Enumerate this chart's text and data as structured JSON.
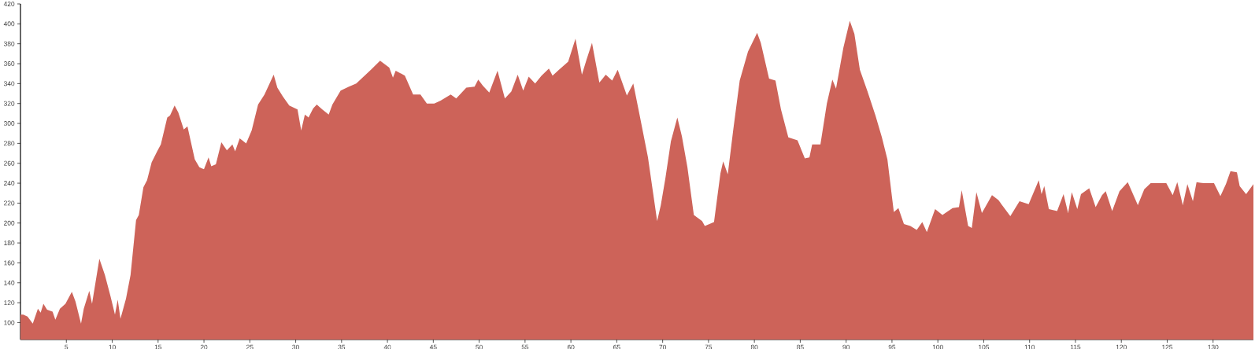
{
  "chart_data": {
    "type": "area",
    "color": "#cd6359",
    "x": [
      0,
      0.3,
      0.77,
      1.34,
      1.9,
      2.2,
      2.5,
      2.9,
      3.5,
      3.8,
      4.3,
      4.9,
      5.6,
      6.0,
      6.6,
      6.9,
      7.5,
      7.8,
      8.6,
      9.2,
      9.8,
      10.3,
      10.6,
      10.9,
      11.5,
      12.0,
      12.6,
      12.9,
      13.4,
      13.8,
      14.3,
      14.9,
      15.3,
      16.0,
      16.3,
      16.8,
      17.2,
      17.8,
      18.2,
      19.0,
      19.5,
      20.0,
      20.5,
      20.8,
      21.3,
      21.9,
      22.5,
      23.1,
      23.4,
      23.9,
      24.6,
      25.2,
      25.9,
      26.6,
      27.6,
      28.0,
      28.6,
      29.3,
      30.2,
      30.6,
      31.0,
      31.4,
      31.9,
      32.3,
      32.9,
      33.6,
      34.0,
      34.9,
      35.8,
      36.6,
      37.4,
      38.2,
      39.2,
      40.2,
      40.6,
      40.9,
      41.9,
      42.8,
      43.6,
      44.3,
      45.1,
      45.8,
      46.9,
      47.5,
      48.6,
      49.5,
      49.9,
      50.4,
      51.1,
      52.0,
      52.8,
      53.5,
      54.2,
      54.8,
      55.4,
      56.1,
      56.8,
      57.6,
      58.0,
      58.7,
      59.7,
      60.5,
      61.2,
      61.7,
      62.3,
      63.1,
      63.8,
      64.5,
      65.1,
      66.1,
      66.8,
      67.5,
      68.4,
      69.4,
      69.8,
      70.3,
      70.9,
      71.6,
      72.1,
      72.7,
      73.4,
      74.3,
      74.6,
      75.6,
      76.3,
      76.6,
      77.1,
      77.7,
      78.4,
      79.3,
      80.3,
      80.7,
      81.6,
      82.3,
      82.9,
      83.7,
      84.7,
      85.5,
      86.0,
      86.3,
      87.2,
      87.9,
      88.5,
      88.9,
      89.7,
      90.4,
      90.9,
      91.5,
      92.3,
      93.2,
      93.9,
      94.5,
      95.2,
      95.7,
      96.3,
      97.0,
      97.7,
      98.3,
      98.8,
      99.7,
      100.5,
      101.6,
      102.3,
      102.6,
      103.3,
      103.7,
      104.2,
      104.8,
      105.9,
      106.6,
      107.9,
      108.9,
      109.9,
      111.0,
      111.3,
      111.6,
      112.1,
      113.0,
      113.7,
      114.2,
      114.6,
      115.2,
      115.6,
      116.5,
      117.2,
      117.9,
      118.3,
      119.0,
      119.8,
      120.7,
      121.8,
      122.5,
      123.2,
      124.2,
      124.9,
      125.6,
      126.1,
      126.7,
      127.2,
      127.8,
      128.2,
      129.0,
      130.1,
      130.8,
      131.4,
      131.9,
      132.6,
      132.9,
      133.6,
      134.4
    ],
    "values": [
      108,
      108,
      106,
      99,
      114,
      110,
      119,
      113,
      111,
      103,
      114,
      119,
      131,
      121,
      99,
      114,
      132,
      119,
      164,
      148,
      127,
      108,
      123,
      104,
      124,
      148,
      203,
      208,
      236,
      243,
      261,
      272,
      279,
      306,
      308,
      318,
      311,
      294,
      297,
      264,
      256,
      254,
      266,
      257,
      259,
      281,
      273,
      279,
      272,
      285,
      280,
      293,
      319,
      329,
      349,
      336,
      327,
      318,
      314,
      293,
      309,
      306,
      315,
      319,
      314,
      309,
      319,
      333,
      337,
      340,
      347,
      354,
      363,
      356,
      346,
      353,
      348,
      329,
      329,
      320,
      320,
      323,
      329,
      325,
      336,
      337,
      344,
      338,
      331,
      353,
      325,
      332,
      349,
      333,
      347,
      340,
      348,
      355,
      348,
      354,
      362,
      385,
      349,
      364,
      381,
      341,
      349,
      343,
      354,
      328,
      340,
      308,
      266,
      202,
      218,
      245,
      282,
      306,
      287,
      256,
      208,
      202,
      197,
      201,
      250,
      262,
      249,
      294,
      343,
      372,
      391,
      381,
      345,
      343,
      314,
      286,
      283,
      265,
      266,
      279,
      279,
      320,
      344,
      335,
      376,
      403,
      390,
      354,
      333,
      308,
      286,
      264,
      211,
      215,
      199,
      197,
      193,
      201,
      191,
      214,
      208,
      215,
      216,
      233,
      197,
      195,
      231,
      210,
      228,
      223,
      207,
      222,
      219,
      243,
      229,
      237,
      214,
      212,
      229,
      210,
      231,
      214,
      229,
      235,
      216,
      228,
      232,
      212,
      232,
      241,
      218,
      234,
      240,
      240,
      240,
      228,
      241,
      218,
      239,
      222,
      241,
      240,
      240,
      227,
      239,
      252,
      251,
      237,
      229,
      239
    ],
    "xlim": [
      0,
      134.4
    ],
    "ylim": [
      83,
      420
    ],
    "xticks": [
      5,
      10,
      15,
      20,
      25,
      30,
      35,
      40,
      45,
      50,
      55,
      60,
      65,
      70,
      75,
      80,
      85,
      90,
      95,
      100,
      105,
      110,
      115,
      120,
      125,
      130
    ],
    "yticks": [
      100,
      120,
      140,
      160,
      180,
      200,
      220,
      240,
      260,
      280,
      300,
      320,
      340,
      360,
      380,
      400,
      420
    ]
  }
}
